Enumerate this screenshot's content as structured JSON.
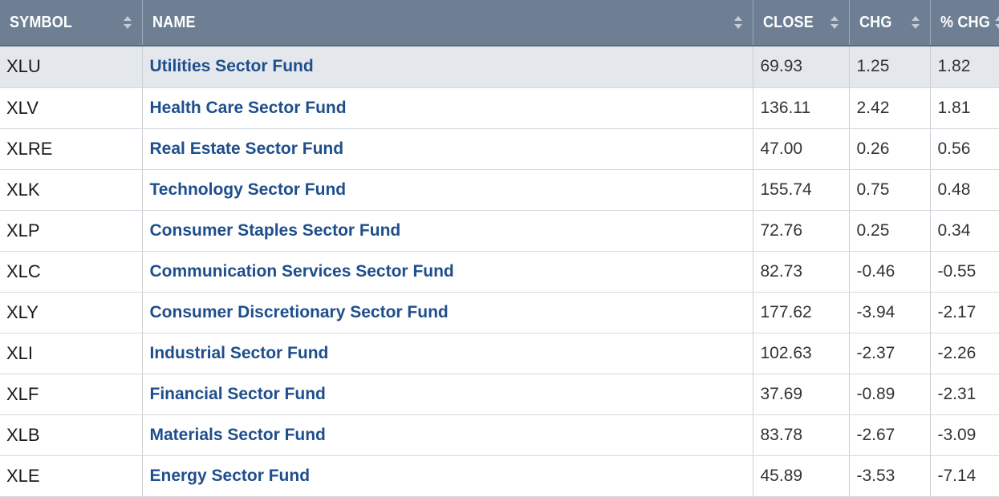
{
  "columns": {
    "symbol": "SYMBOL",
    "name": "NAME",
    "close": "CLOSE",
    "chg": "CHG",
    "pct_chg": "% CHG"
  },
  "colors": {
    "header_bg": "#6e7f93",
    "header_text": "#ffffff",
    "link_text": "#1f4e8c",
    "highlight_row": "#e4e8ed"
  },
  "rows": [
    {
      "symbol": "XLU",
      "name": "Utilities Sector Fund",
      "close": "69.93",
      "chg": "1.25",
      "pct_chg": "1.82"
    },
    {
      "symbol": "XLV",
      "name": "Health Care Sector Fund",
      "close": "136.11",
      "chg": "2.42",
      "pct_chg": "1.81"
    },
    {
      "symbol": "XLRE",
      "name": "Real Estate Sector Fund",
      "close": "47.00",
      "chg": "0.26",
      "pct_chg": "0.56"
    },
    {
      "symbol": "XLK",
      "name": "Technology Sector Fund",
      "close": "155.74",
      "chg": "0.75",
      "pct_chg": "0.48"
    },
    {
      "symbol": "XLP",
      "name": "Consumer Staples Sector Fund",
      "close": "72.76",
      "chg": "0.25",
      "pct_chg": "0.34"
    },
    {
      "symbol": "XLC",
      "name": "Communication Services Sector Fund",
      "close": "82.73",
      "chg": "-0.46",
      "pct_chg": "-0.55"
    },
    {
      "symbol": "XLY",
      "name": "Consumer Discretionary Sector Fund",
      "close": "177.62",
      "chg": "-3.94",
      "pct_chg": "-2.17"
    },
    {
      "symbol": "XLI",
      "name": "Industrial Sector Fund",
      "close": "102.63",
      "chg": "-2.37",
      "pct_chg": "-2.26"
    },
    {
      "symbol": "XLF",
      "name": "Financial Sector Fund",
      "close": "37.69",
      "chg": "-0.89",
      "pct_chg": "-2.31"
    },
    {
      "symbol": "XLB",
      "name": "Materials Sector Fund",
      "close": "83.78",
      "chg": "-2.67",
      "pct_chg": "-3.09"
    },
    {
      "symbol": "XLE",
      "name": "Energy Sector Fund",
      "close": "45.89",
      "chg": "-3.53",
      "pct_chg": "-7.14"
    }
  ]
}
